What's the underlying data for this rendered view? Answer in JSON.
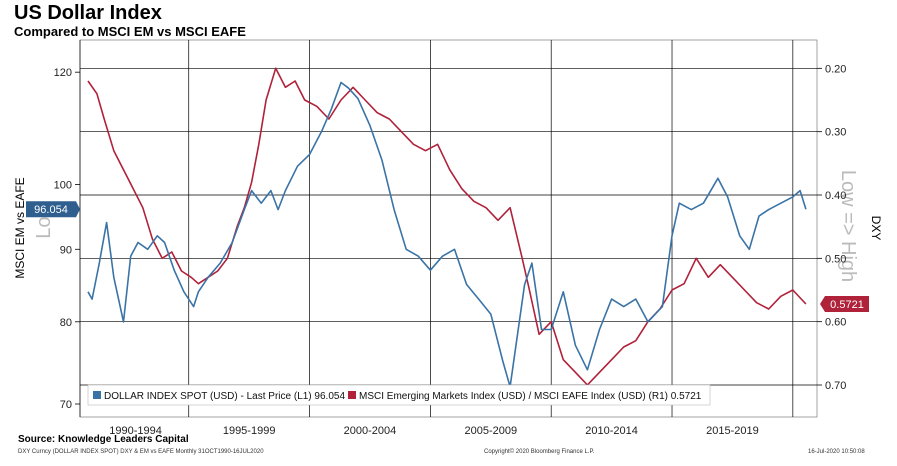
{
  "title": "US Dollar Index",
  "subtitle": "Compared to MSCI EM vs MSCI EAFE",
  "source": "Source: Knowledge Leaders Capital",
  "footer": {
    "left": "DXY Curncy (DOLLAR INDEX SPOT) DXY & EM vs EAFE  Monthly 31OCT1990-16JUL2020",
    "center": "Copyright© 2020 Bloomberg Finance L.P.",
    "right": "16-Jul-2020  10:50:08"
  },
  "colors": {
    "dxy": "#3a73a6",
    "ratio": "#b0213a",
    "grid": "#000000"
  },
  "chart_data": {
    "type": "line",
    "x_categories": [
      "1990-1994",
      "1995-1999",
      "2000-2004",
      "2005-2009",
      "2010-2014",
      "2015-2019"
    ],
    "y_left": {
      "label": "MSCI EM vs EAFE",
      "ticks": [
        70,
        80,
        90,
        100,
        120
      ],
      "range": [
        70,
        122
      ]
    },
    "y_right": {
      "label": "DXY",
      "ticks": [
        "0.20",
        "0.30",
        "0.40",
        "0.50",
        "0.60",
        "0.70"
      ],
      "range": [
        0.19,
        0.73
      ],
      "inverted": true
    },
    "watermark_left": "Log",
    "watermark_right": "Low => High",
    "last_value_left": "96.054",
    "last_value_right": "0.5721",
    "series": [
      {
        "name": "DOLLAR INDEX SPOT (USD) - Last Price (L1) 96.054",
        "axis": "left",
        "x": [
          1990.83,
          1991.0,
          1991.3,
          1991.6,
          1991.9,
          1992.3,
          1992.6,
          1992.9,
          1993.3,
          1993.7,
          1994.0,
          1994.4,
          1994.8,
          1995.2,
          1995.4,
          1995.8,
          1996.3,
          1996.8,
          1997.3,
          1997.6,
          1998.0,
          1998.4,
          1998.7,
          1999.0,
          1999.5,
          2000.0,
          2000.5,
          2000.9,
          2001.3,
          2001.6,
          2002.0,
          2002.5,
          2003.0,
          2003.5,
          2004.0,
          2004.5,
          2005.0,
          2005.5,
          2006.0,
          2006.5,
          2007.0,
          2007.5,
          2008.0,
          2008.3,
          2008.9,
          2009.2,
          2009.6,
          2010.0,
          2010.5,
          2011.0,
          2011.5,
          2012.0,
          2012.5,
          2013.0,
          2013.5,
          2014.0,
          2014.6,
          2015.0,
          2015.3,
          2015.8,
          2016.3,
          2016.9,
          2017.3,
          2017.8,
          2018.2,
          2018.6,
          2019.0,
          2019.5,
          2020.0,
          2020.3,
          2020.54
        ],
        "values": [
          84,
          83,
          88,
          94,
          86,
          80,
          89,
          91,
          90,
          92,
          91,
          87,
          84,
          82,
          84,
          86,
          88,
          91,
          96,
          99,
          97,
          99,
          96,
          99,
          103,
          105,
          109,
          113,
          118,
          117,
          115,
          110,
          104,
          96,
          90,
          89,
          87,
          89,
          90,
          85,
          83,
          81,
          75,
          72,
          85,
          88,
          79,
          79,
          84,
          77,
          74,
          79,
          83,
          82,
          83,
          80,
          82,
          92,
          97,
          96,
          97,
          101,
          98,
          92,
          90,
          95,
          96,
          97,
          98,
          99,
          96.05
        ]
      },
      {
        "name": "MSCI Emerging Markets Index (USD) / MSCI EAFE Index (USD) (R1) 0.5721",
        "axis": "right",
        "x": [
          1990.83,
          1991.2,
          1991.5,
          1991.9,
          1992.3,
          1992.7,
          1993.1,
          1993.5,
          1993.9,
          1994.3,
          1994.7,
          1995.1,
          1995.4,
          1995.8,
          1996.2,
          1996.6,
          1997.0,
          1997.3,
          1997.6,
          1997.9,
          1998.2,
          1998.6,
          1999.0,
          1999.4,
          1999.8,
          2000.3,
          2000.8,
          2001.3,
          2001.8,
          2002.3,
          2002.8,
          2003.3,
          2003.8,
          2004.3,
          2004.8,
          2005.3,
          2005.8,
          2006.3,
          2006.8,
          2007.3,
          2007.8,
          2008.3,
          2008.8,
          2009.1,
          2009.5,
          2010.0,
          2010.5,
          2011.0,
          2011.5,
          2012.0,
          2012.5,
          2013.0,
          2013.5,
          2014.0,
          2014.5,
          2015.0,
          2015.5,
          2016.0,
          2016.5,
          2017.0,
          2017.5,
          2018.0,
          2018.5,
          2019.0,
          2019.5,
          2020.0,
          2020.54
        ],
        "values": [
          0.22,
          0.24,
          0.28,
          0.33,
          0.36,
          0.39,
          0.42,
          0.47,
          0.5,
          0.49,
          0.52,
          0.53,
          0.54,
          0.53,
          0.52,
          0.5,
          0.45,
          0.42,
          0.38,
          0.32,
          0.25,
          0.2,
          0.23,
          0.22,
          0.25,
          0.26,
          0.28,
          0.25,
          0.23,
          0.25,
          0.27,
          0.28,
          0.3,
          0.32,
          0.33,
          0.32,
          0.36,
          0.39,
          0.41,
          0.42,
          0.44,
          0.42,
          0.5,
          0.55,
          0.62,
          0.6,
          0.66,
          0.68,
          0.7,
          0.68,
          0.66,
          0.64,
          0.63,
          0.6,
          0.58,
          0.55,
          0.54,
          0.5,
          0.53,
          0.51,
          0.53,
          0.55,
          0.57,
          0.58,
          0.56,
          0.55,
          0.5721
        ]
      }
    ]
  }
}
